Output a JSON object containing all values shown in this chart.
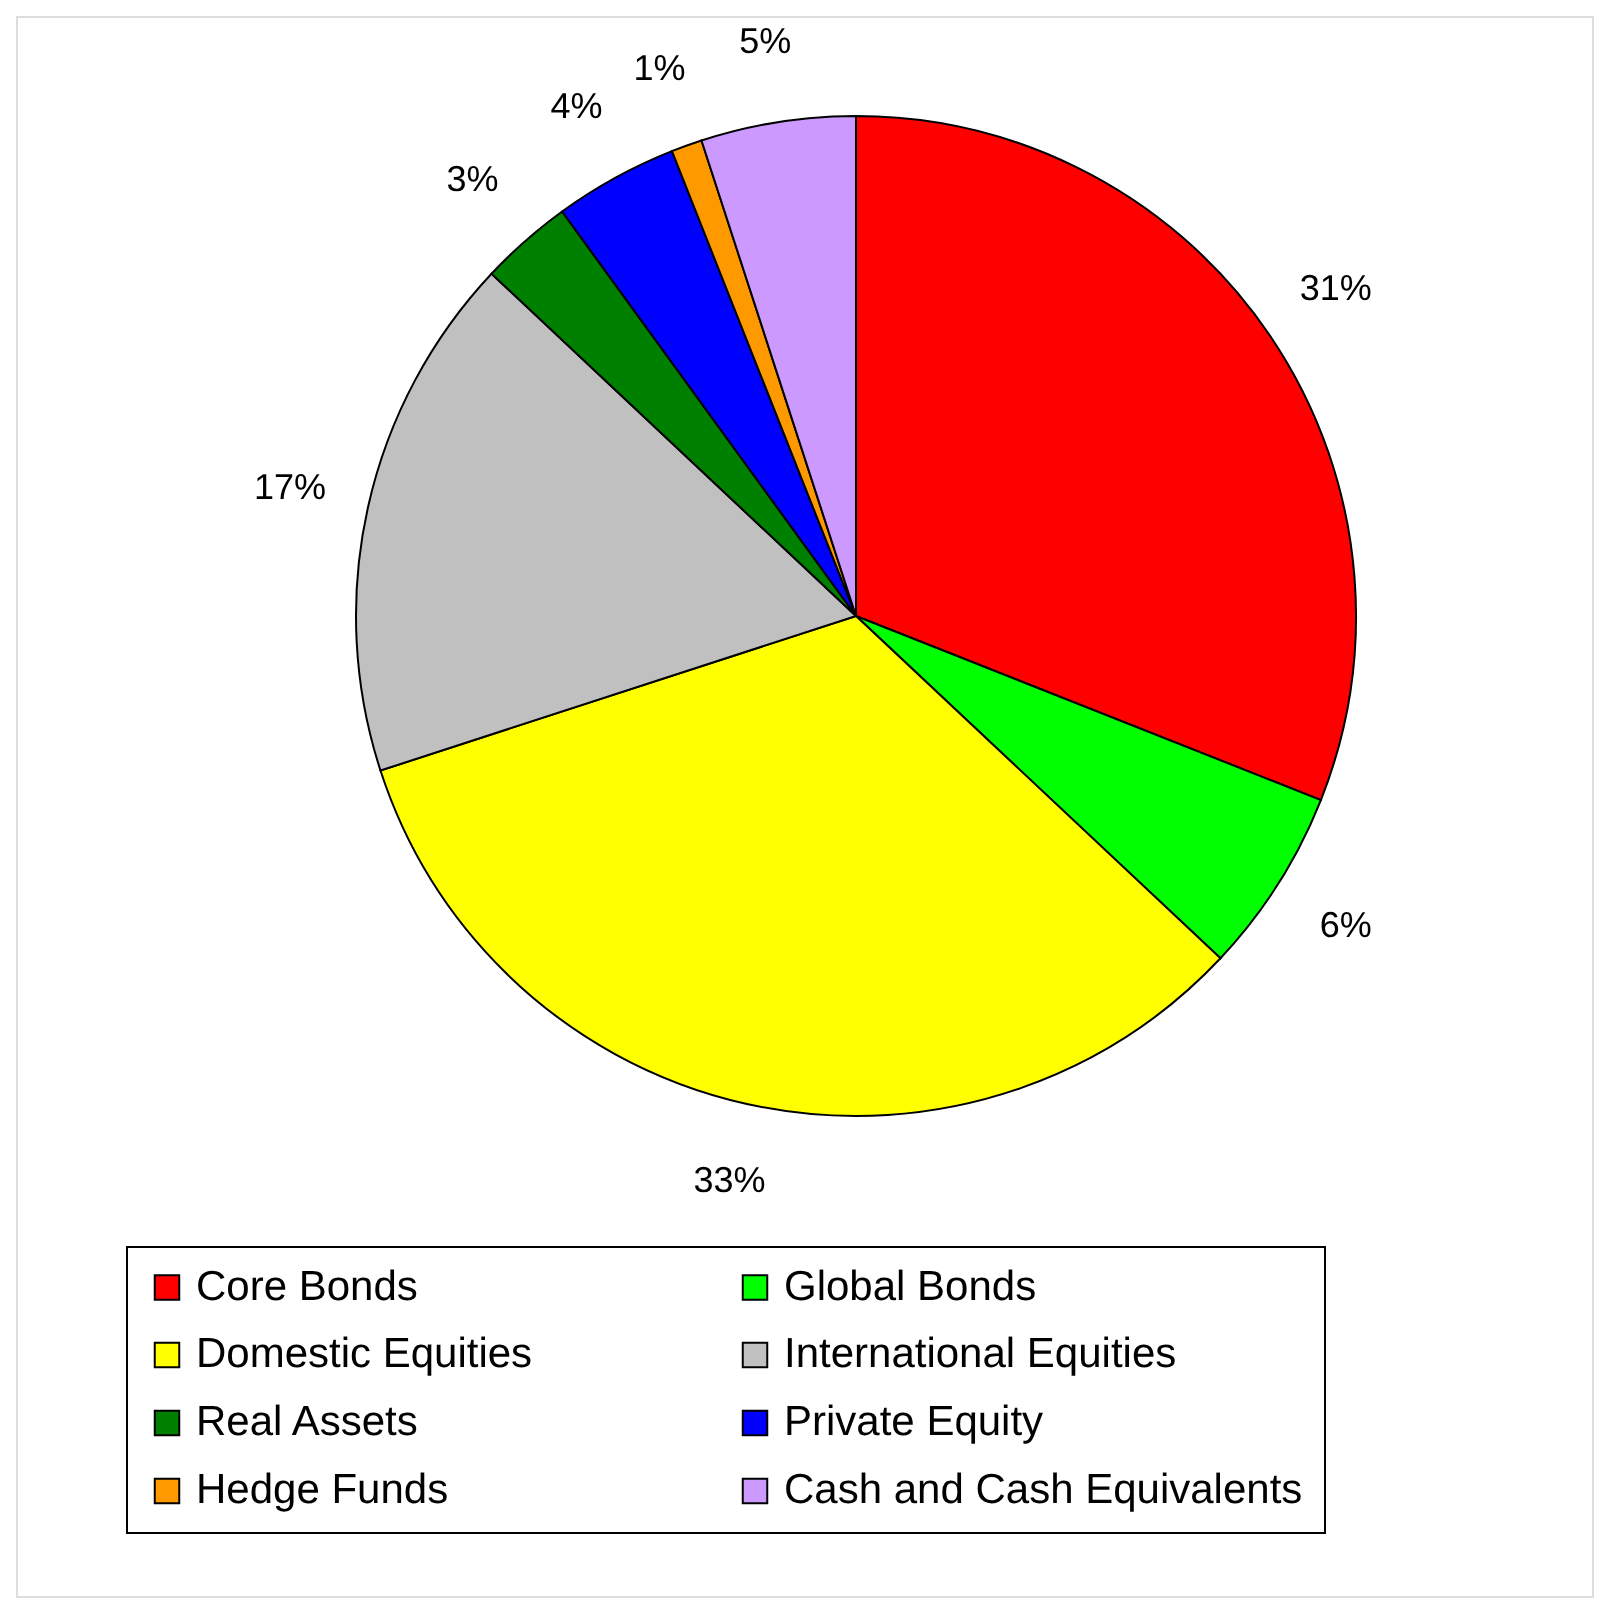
{
  "chart_data": {
    "type": "pie",
    "categories": [
      "Core Bonds",
      "Global Bonds",
      "Domestic Equities",
      "International Equities",
      "Real Assets",
      "Private Equity",
      "Hedge Funds",
      "Cash and Cash Equivalents"
    ],
    "values": [
      31,
      6,
      33,
      17,
      3,
      4,
      1,
      5
    ],
    "colors": [
      "#ff0000",
      "#00ff00",
      "#ffff00",
      "#c0c0c0",
      "#008000",
      "#0000ff",
      "#ff9900",
      "#cc99ff"
    ],
    "value_labels": [
      "31%",
      "6%",
      "33%",
      "17%",
      "3%",
      "4%",
      "1%",
      "5%"
    ],
    "legend": "bottom"
  }
}
